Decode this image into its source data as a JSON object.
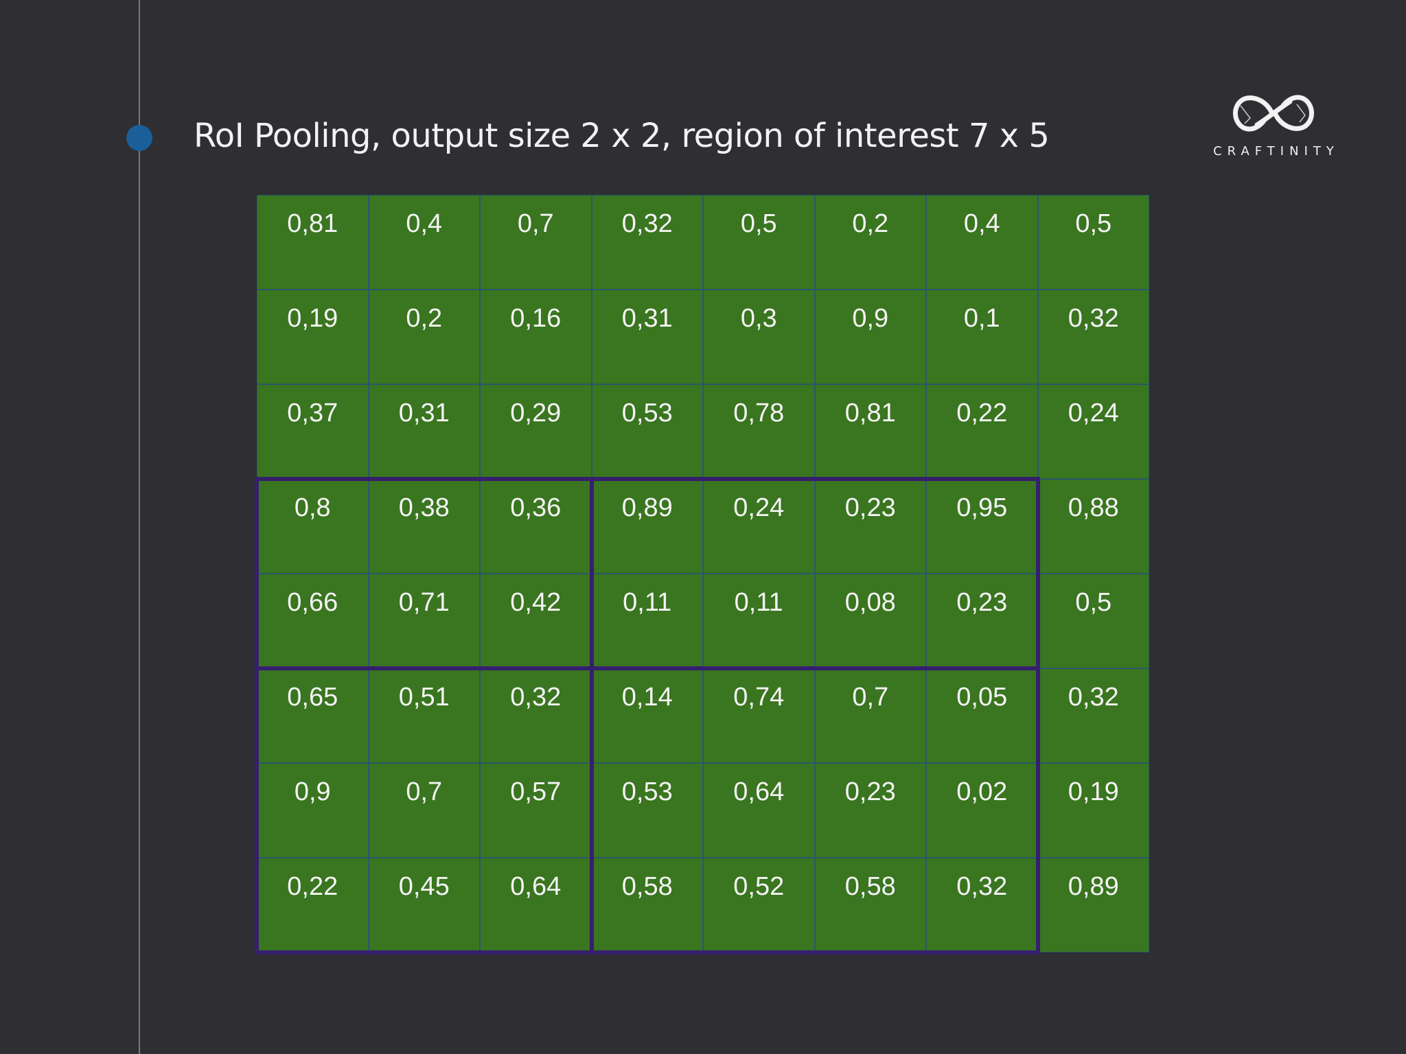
{
  "slide": {
    "title": "RoI Pooling, output size 2 x 2, region of interest 7 x 5"
  },
  "logo": {
    "icon": "infinity-logo-icon",
    "text": "CRAFTINITY"
  },
  "colors": {
    "background": "#2e2e33",
    "cell_fill": "#3a7520",
    "cell_border": "#26596a",
    "roi_border": "#35206e",
    "timeline_dot": "#1a5f9a"
  },
  "grid": {
    "rows": [
      [
        "0,81",
        "0,4",
        "0,7",
        "0,32",
        "0,5",
        "0,2",
        "0,4",
        "0,5"
      ],
      [
        "0,19",
        "0,2",
        "0,16",
        "0,31",
        "0,3",
        "0,9",
        "0,1",
        "0,32"
      ],
      [
        "0,37",
        "0,31",
        "0,29",
        "0,53",
        "0,78",
        "0,81",
        "0,22",
        "0,24"
      ],
      [
        "0,8",
        "0,38",
        "0,36",
        "0,89",
        "0,24",
        "0,23",
        "0,95",
        "0,88"
      ],
      [
        "0,66",
        "0,71",
        "0,42",
        "0,11",
        "0,11",
        "0,08",
        "0,23",
        "0,5"
      ],
      [
        "0,65",
        "0,51",
        "0,32",
        "0,14",
        "0,74",
        "0,7",
        "0,05",
        "0,32"
      ],
      [
        "0,9",
        "0,7",
        "0,57",
        "0,53",
        "0,64",
        "0,23",
        "0,02",
        "0,19"
      ],
      [
        "0,22",
        "0,45",
        "0,64",
        "0,58",
        "0,52",
        "0,58",
        "0,32",
        "0,89"
      ]
    ],
    "roi_sections": [
      {
        "rows": [
          3,
          4
        ],
        "cols": [
          0,
          2
        ]
      },
      {
        "rows": [
          3,
          4
        ],
        "cols": [
          3,
          6
        ]
      },
      {
        "rows": [
          5,
          7
        ],
        "cols": [
          0,
          2
        ]
      },
      {
        "rows": [
          5,
          7
        ],
        "cols": [
          3,
          6
        ]
      }
    ]
  }
}
